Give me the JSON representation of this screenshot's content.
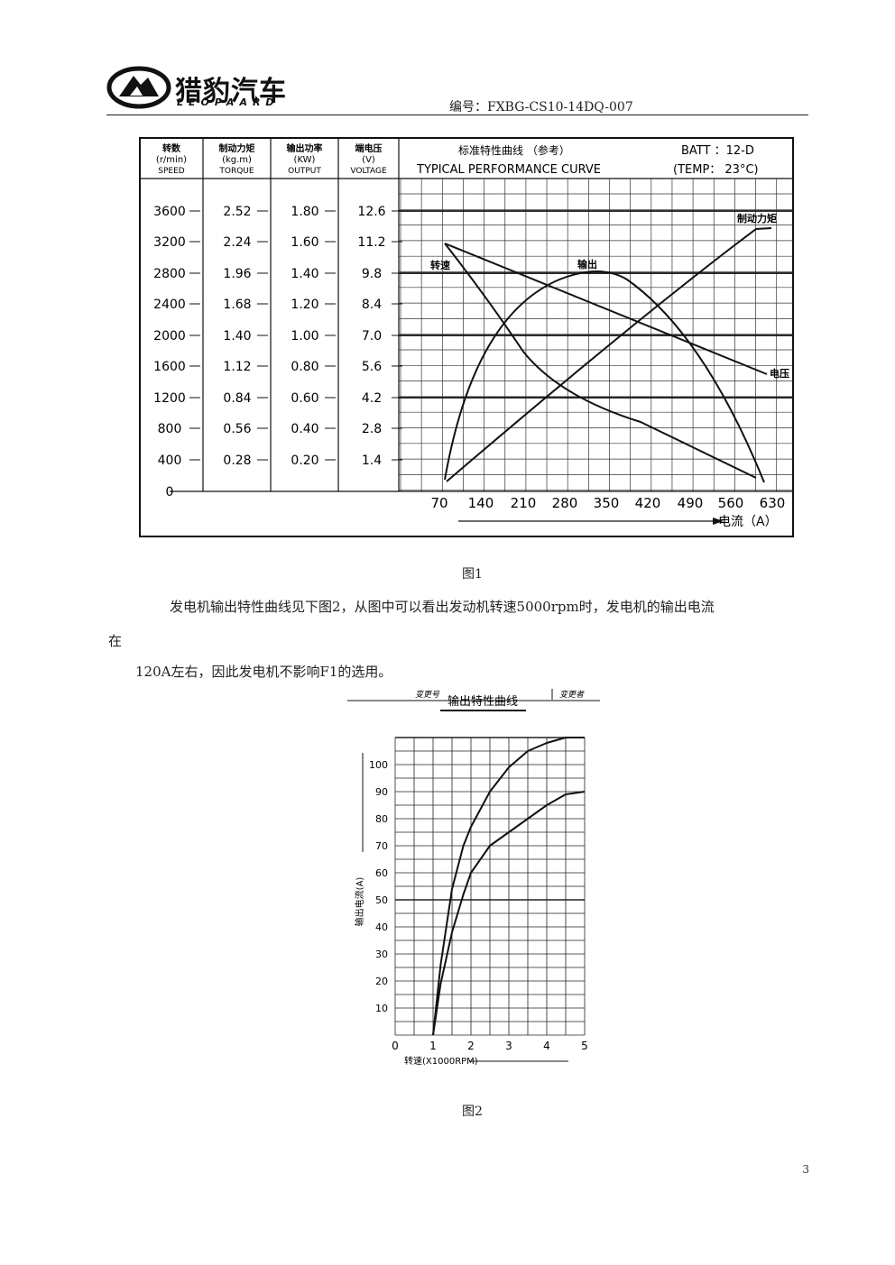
{
  "header": {
    "logo_cn": "猎豹汽车",
    "logo_en": "LEOPAARD",
    "doc_number": "编号：FXBG-CS10-14DQ-007"
  },
  "figure1": {
    "caption": "图1",
    "columns": [
      {
        "cn": "转数",
        "unit": "(r/min)",
        "en": "SPEED",
        "ticks": [
          "3600",
          "3200",
          "2800",
          "2400",
          "2000",
          "1600",
          "1200",
          "800",
          "400",
          "0"
        ]
      },
      {
        "cn": "制动力矩",
        "unit": "(kg.m)",
        "en": "TORQUE",
        "ticks": [
          "2.52",
          "2.24",
          "1.96",
          "1.68",
          "1.40",
          "1.12",
          "0.84",
          "0.56",
          "0.28"
        ]
      },
      {
        "cn": "输出功率",
        "unit": "(KW)",
        "en": "OUTPUT",
        "ticks": [
          "1.80",
          "1.60",
          "1.40",
          "1.20",
          "1.00",
          "0.80",
          "0.60",
          "0.40",
          "0.20"
        ]
      },
      {
        "cn": "端电压",
        "unit": "(V)",
        "en": "VOLTAGE",
        "ticks": [
          "12.6",
          "11.2",
          "9.8",
          "8.4",
          "7.0",
          "5.6",
          "4.2",
          "2.8",
          "1.4"
        ]
      }
    ],
    "title_cn": "标准特性曲线  （参考）",
    "title_en": "TYPICAL   PERFORMANCE   CURVE",
    "batt": "BATT ：12-D",
    "temp": "(TEMP： 23°C)",
    "curve_labels": {
      "torque": "制动力矩",
      "output": "输出",
      "speed": "转速",
      "voltage": "电压"
    },
    "x_ticks": [
      "70",
      "140",
      "210",
      "280",
      "350",
      "420",
      "490",
      "560",
      "630"
    ],
    "x_label": "电流（A）"
  },
  "paragraph": {
    "line1": "发电机输出特性曲线见下图2，从图中可以看出发动机转速5000rpm时，发电机的输出电流",
    "line2": "在",
    "line3": "120A左右，因此发电机不影响F1的选用。"
  },
  "figure2": {
    "caption": "图2",
    "title": "输出特性曲线",
    "revision_left": "变更号",
    "revision_right": "变更者",
    "y_label": "输出电流(A)",
    "x_label": "转速(X1000RPM)",
    "chart_data": {
      "type": "line",
      "title": "输出特性曲线",
      "xlabel": "转速(X1000RPM)",
      "ylabel": "输出电流(A)",
      "xlim": [
        0,
        5
      ],
      "ylim": [
        0,
        110
      ],
      "x_ticks": [
        "0",
        "1",
        "2",
        "3",
        "4",
        "5"
      ],
      "y_ticks": [
        "10",
        "20",
        "30",
        "40",
        "50",
        "60",
        "70",
        "80",
        "90",
        "100"
      ],
      "series": [
        {
          "x": [
            1.0,
            1.2,
            1.5,
            1.8,
            2.0,
            2.5,
            3.0,
            3.5,
            4.0,
            4.5,
            5.0
          ],
          "y": [
            0,
            26,
            54,
            70,
            77,
            90,
            99,
            105,
            108,
            110,
            110
          ]
        },
        {
          "x": [
            1.0,
            1.2,
            1.5,
            1.8,
            2.0,
            2.5,
            3.0,
            3.5,
            4.0,
            4.5,
            5.0
          ],
          "y": [
            0,
            19,
            38,
            52,
            60,
            70,
            75,
            80,
            85,
            89,
            90
          ]
        }
      ]
    }
  },
  "page_number": "3"
}
